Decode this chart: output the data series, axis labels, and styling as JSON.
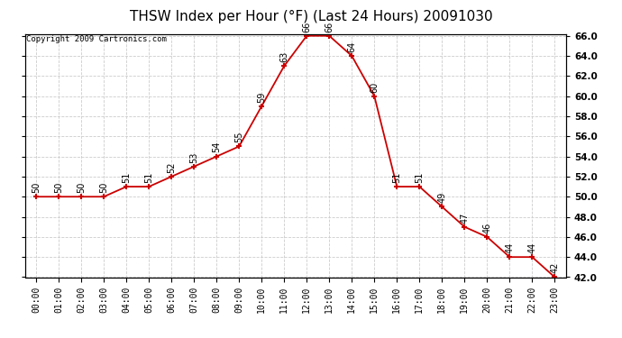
{
  "title": "THSW Index per Hour (°F) (Last 24 Hours) 20091030",
  "copyright": "Copyright 2009 Cartronics.com",
  "hours": [
    "00:00",
    "01:00",
    "02:00",
    "03:00",
    "04:00",
    "05:00",
    "06:00",
    "07:00",
    "08:00",
    "09:00",
    "10:00",
    "11:00",
    "12:00",
    "13:00",
    "14:00",
    "15:00",
    "16:00",
    "17:00",
    "18:00",
    "19:00",
    "20:00",
    "21:00",
    "22:00",
    "23:00"
  ],
  "values": [
    50,
    50,
    50,
    50,
    51,
    51,
    52,
    53,
    54,
    55,
    59,
    63,
    66,
    66,
    64,
    60,
    51,
    51,
    49,
    47,
    46,
    44,
    44,
    42
  ],
  "line_color": "#cc0000",
  "marker": "+",
  "marker_color": "#cc0000",
  "ylim_min": 42.0,
  "ylim_max": 66.0,
  "ytick_step": 2.0,
  "bg_color": "#ffffff",
  "grid_color": "#cccccc",
  "title_fontsize": 11,
  "label_fontsize": 7,
  "tick_fontsize": 7,
  "copyright_fontsize": 6.5
}
